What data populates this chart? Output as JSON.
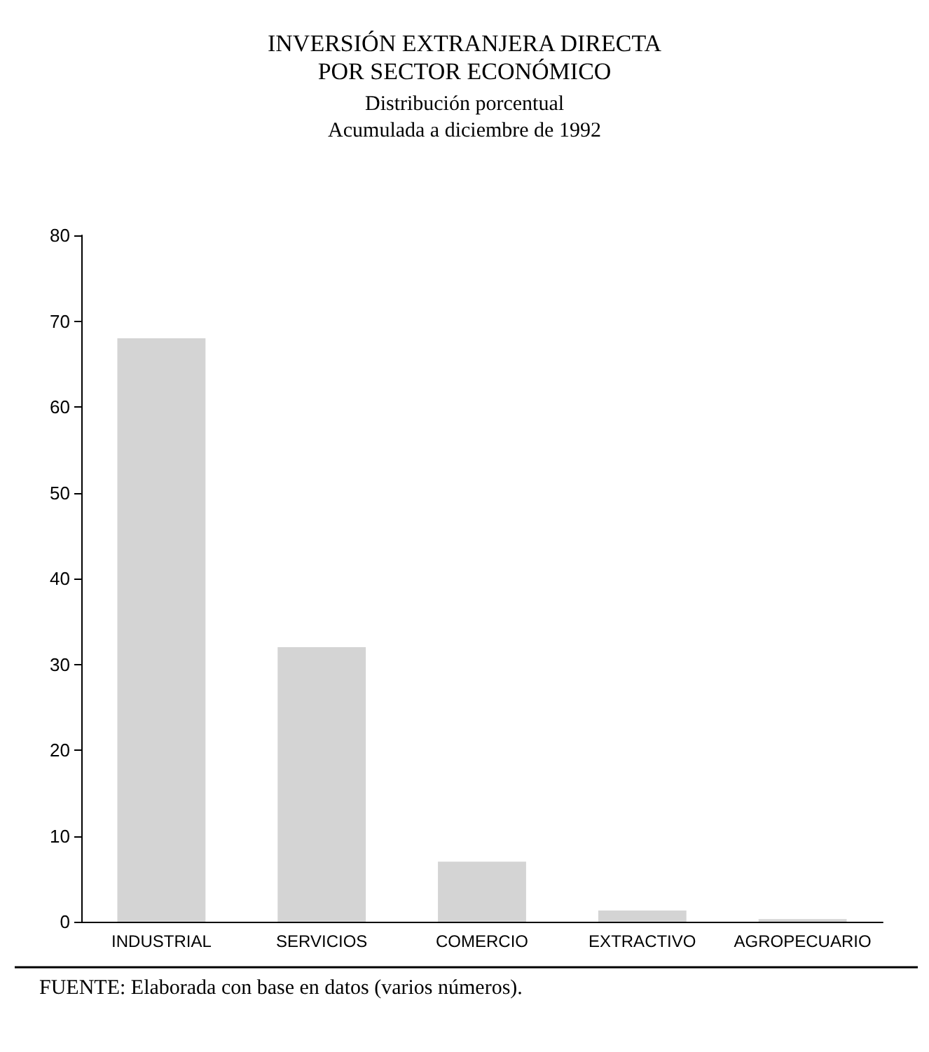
{
  "chart_data": {
    "type": "bar",
    "title": "INVERSIÓN EXTRANJERA DIRECTA\nPOR SECTOR ECONÓMICO",
    "subtitle": "Distribución porcentual\nAcumulada a diciembre de 1992",
    "categories": [
      "INDUSTRIAL",
      "SERVICIOS",
      "COMERCIO",
      "EXTRACTIVO",
      "AGROPECUARIO"
    ],
    "values": [
      68,
      32,
      7,
      1.3,
      0.3
    ],
    "color": "#d4d4d4",
    "ylim": [
      0,
      80
    ],
    "yticks": [
      0,
      10,
      20,
      30,
      40,
      50,
      60,
      70,
      80
    ],
    "grid": false,
    "annotations": [
      "FUENTE: Elaborada con base en datos (varios números)."
    ]
  }
}
